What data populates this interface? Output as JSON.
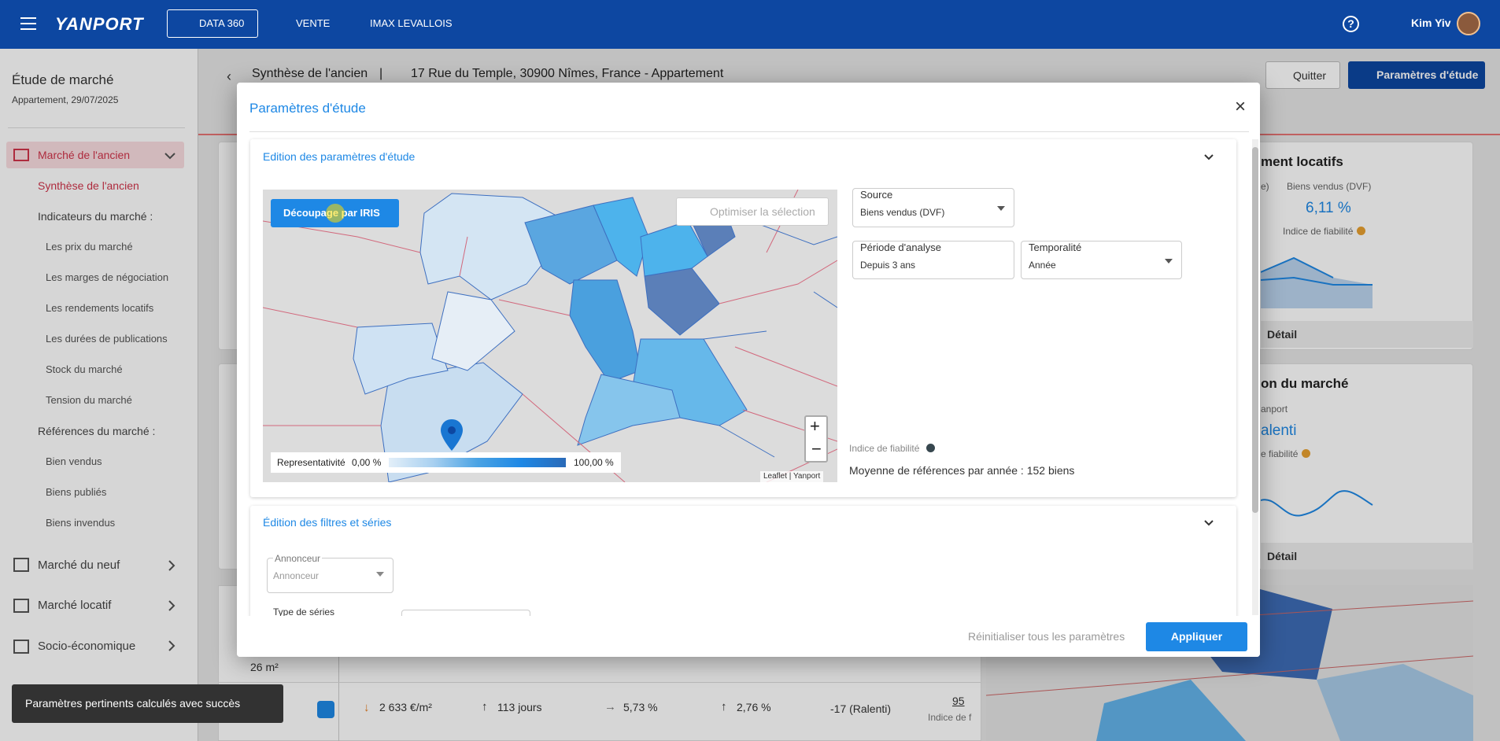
{
  "topbar": {
    "brand": "YANPORT",
    "nav": [
      "DATA 360",
      "VENTE",
      "IMAX LEVALLOIS"
    ],
    "user": "Kim Yiv"
  },
  "sidebar": {
    "title": "Étude de marché",
    "subtitle": "Appartement, 29/07/2025",
    "items": [
      "Marché de l'ancien",
      "Synthèse de l'ancien",
      "Indicateurs du marché :",
      "Les prix du marché",
      "Les marges de négociation",
      "Les rendements locatifs",
      "Les durées de publications",
      "Stock du marché",
      "Tension du marché",
      "Références du marché :",
      "Bien vendus",
      "Biens publiés",
      "Biens invendus",
      "Marché du neuf",
      "Marché locatif",
      "Socio-économique"
    ]
  },
  "header": {
    "title": "Synthèse de l'ancien",
    "separator": "|",
    "address": "17 Rue du Temple, 30900 Nîmes, France - Appartement",
    "quit": "Quitter",
    "params": "Paramètres d'étude"
  },
  "background": {
    "card1": {
      "title": "ment locatifs",
      "col_a": "e)",
      "col_b": "Biens vendus (DVF)",
      "value": "6,11 %",
      "reliability": "Indice de fiabilité",
      "detail": "Détail"
    },
    "card2": {
      "title": "on du marché",
      "source": "anport",
      "value": "alenti",
      "reliability": "e fiabilité",
      "detail": "Détail"
    },
    "table": {
      "row1": [
        "26 m²"
      ],
      "row2": [
        "2 633 €/m²",
        "113 jours",
        "5,73 %",
        "2,76 %",
        "-17 (Ralenti)",
        "95 ",
        "Indice de f"
      ]
    }
  },
  "modal": {
    "title": "Paramètres d'étude",
    "close": "×",
    "section1": {
      "title": "Edition des paramètres d'étude",
      "split_button": "Découpage par IRIS",
      "optimize": "Optimiser la sélection",
      "legend": {
        "label": "Representativité",
        "min": "0,00 %",
        "max": "100,00 %"
      },
      "attribution": "Leaflet | Yanport",
      "zoom_in": "+",
      "zoom_out": "−",
      "source": {
        "label": "Source",
        "value": "Biens vendus (DVF)"
      },
      "period": {
        "label": "Période d'analyse",
        "value": "Depuis 3 ans"
      },
      "temporality": {
        "label": "Temporalité",
        "value": "Année"
      },
      "reliability": "Indice de fiabilité",
      "average": "Moyenne de références par année : 152 biens"
    },
    "section2": {
      "title": "Édition des filtres et séries",
      "advertiser": {
        "label": "Annonceur",
        "value": "Annonceur"
      },
      "series_type": "Type de séries"
    },
    "reset": "Réinitialiser tous les paramètres",
    "apply": "Appliquer"
  },
  "toast": "Paramètres pertinents calculés avec succès"
}
